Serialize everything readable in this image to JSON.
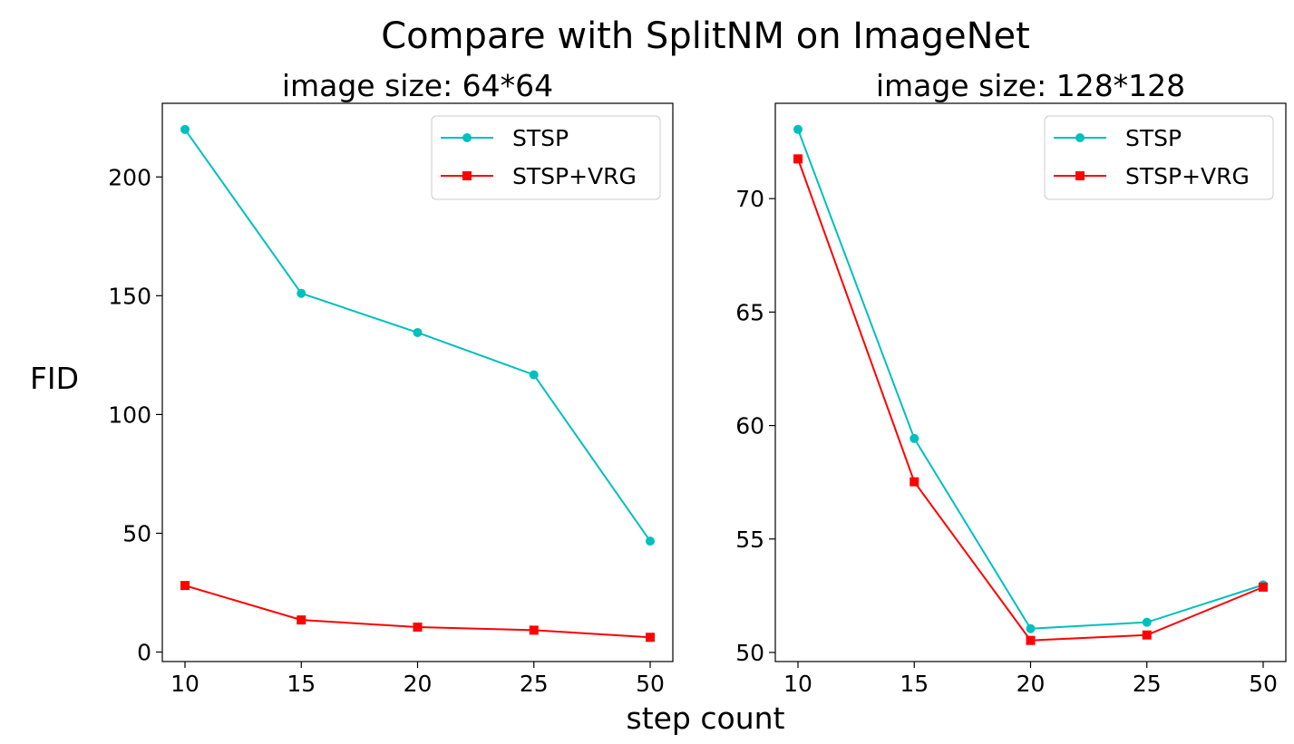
{
  "figure": {
    "title": "Compare with SplitNM on ImageNet",
    "xlabel": "step count",
    "ylabel": "FID"
  },
  "chart_data": [
    {
      "type": "line",
      "title": "image size: 64*64",
      "categories": [
        "10",
        "15",
        "20",
        "25",
        "50"
      ],
      "ylim": [
        -4,
        231
      ],
      "yticks": [
        0,
        50,
        100,
        150,
        200
      ],
      "grid": false,
      "legend": "top-right",
      "series": [
        {
          "name": "STSP",
          "color": "#00bfbf",
          "marker": "circle",
          "values": [
            220.0,
            151.0,
            134.5,
            116.7,
            46.7
          ]
        },
        {
          "name": "STSP+VRG",
          "color": "#ff0000",
          "marker": "square",
          "values": [
            28.0,
            13.5,
            10.5,
            9.2,
            6.2
          ]
        }
      ]
    },
    {
      "type": "line",
      "title": "image size: 128*128",
      "categories": [
        "10",
        "15",
        "20",
        "25",
        "50"
      ],
      "ylim": [
        49.6,
        74.2
      ],
      "yticks": [
        50,
        55,
        60,
        65,
        70
      ],
      "grid": false,
      "legend": "top-right",
      "series": [
        {
          "name": "STSP",
          "color": "#00bfbf",
          "marker": "circle",
          "values": [
            73.05,
            59.43,
            51.05,
            51.33,
            52.98
          ]
        },
        {
          "name": "STSP+VRG",
          "color": "#ff0000",
          "marker": "square",
          "values": [
            71.75,
            57.52,
            50.53,
            50.77,
            52.88
          ]
        }
      ]
    }
  ]
}
